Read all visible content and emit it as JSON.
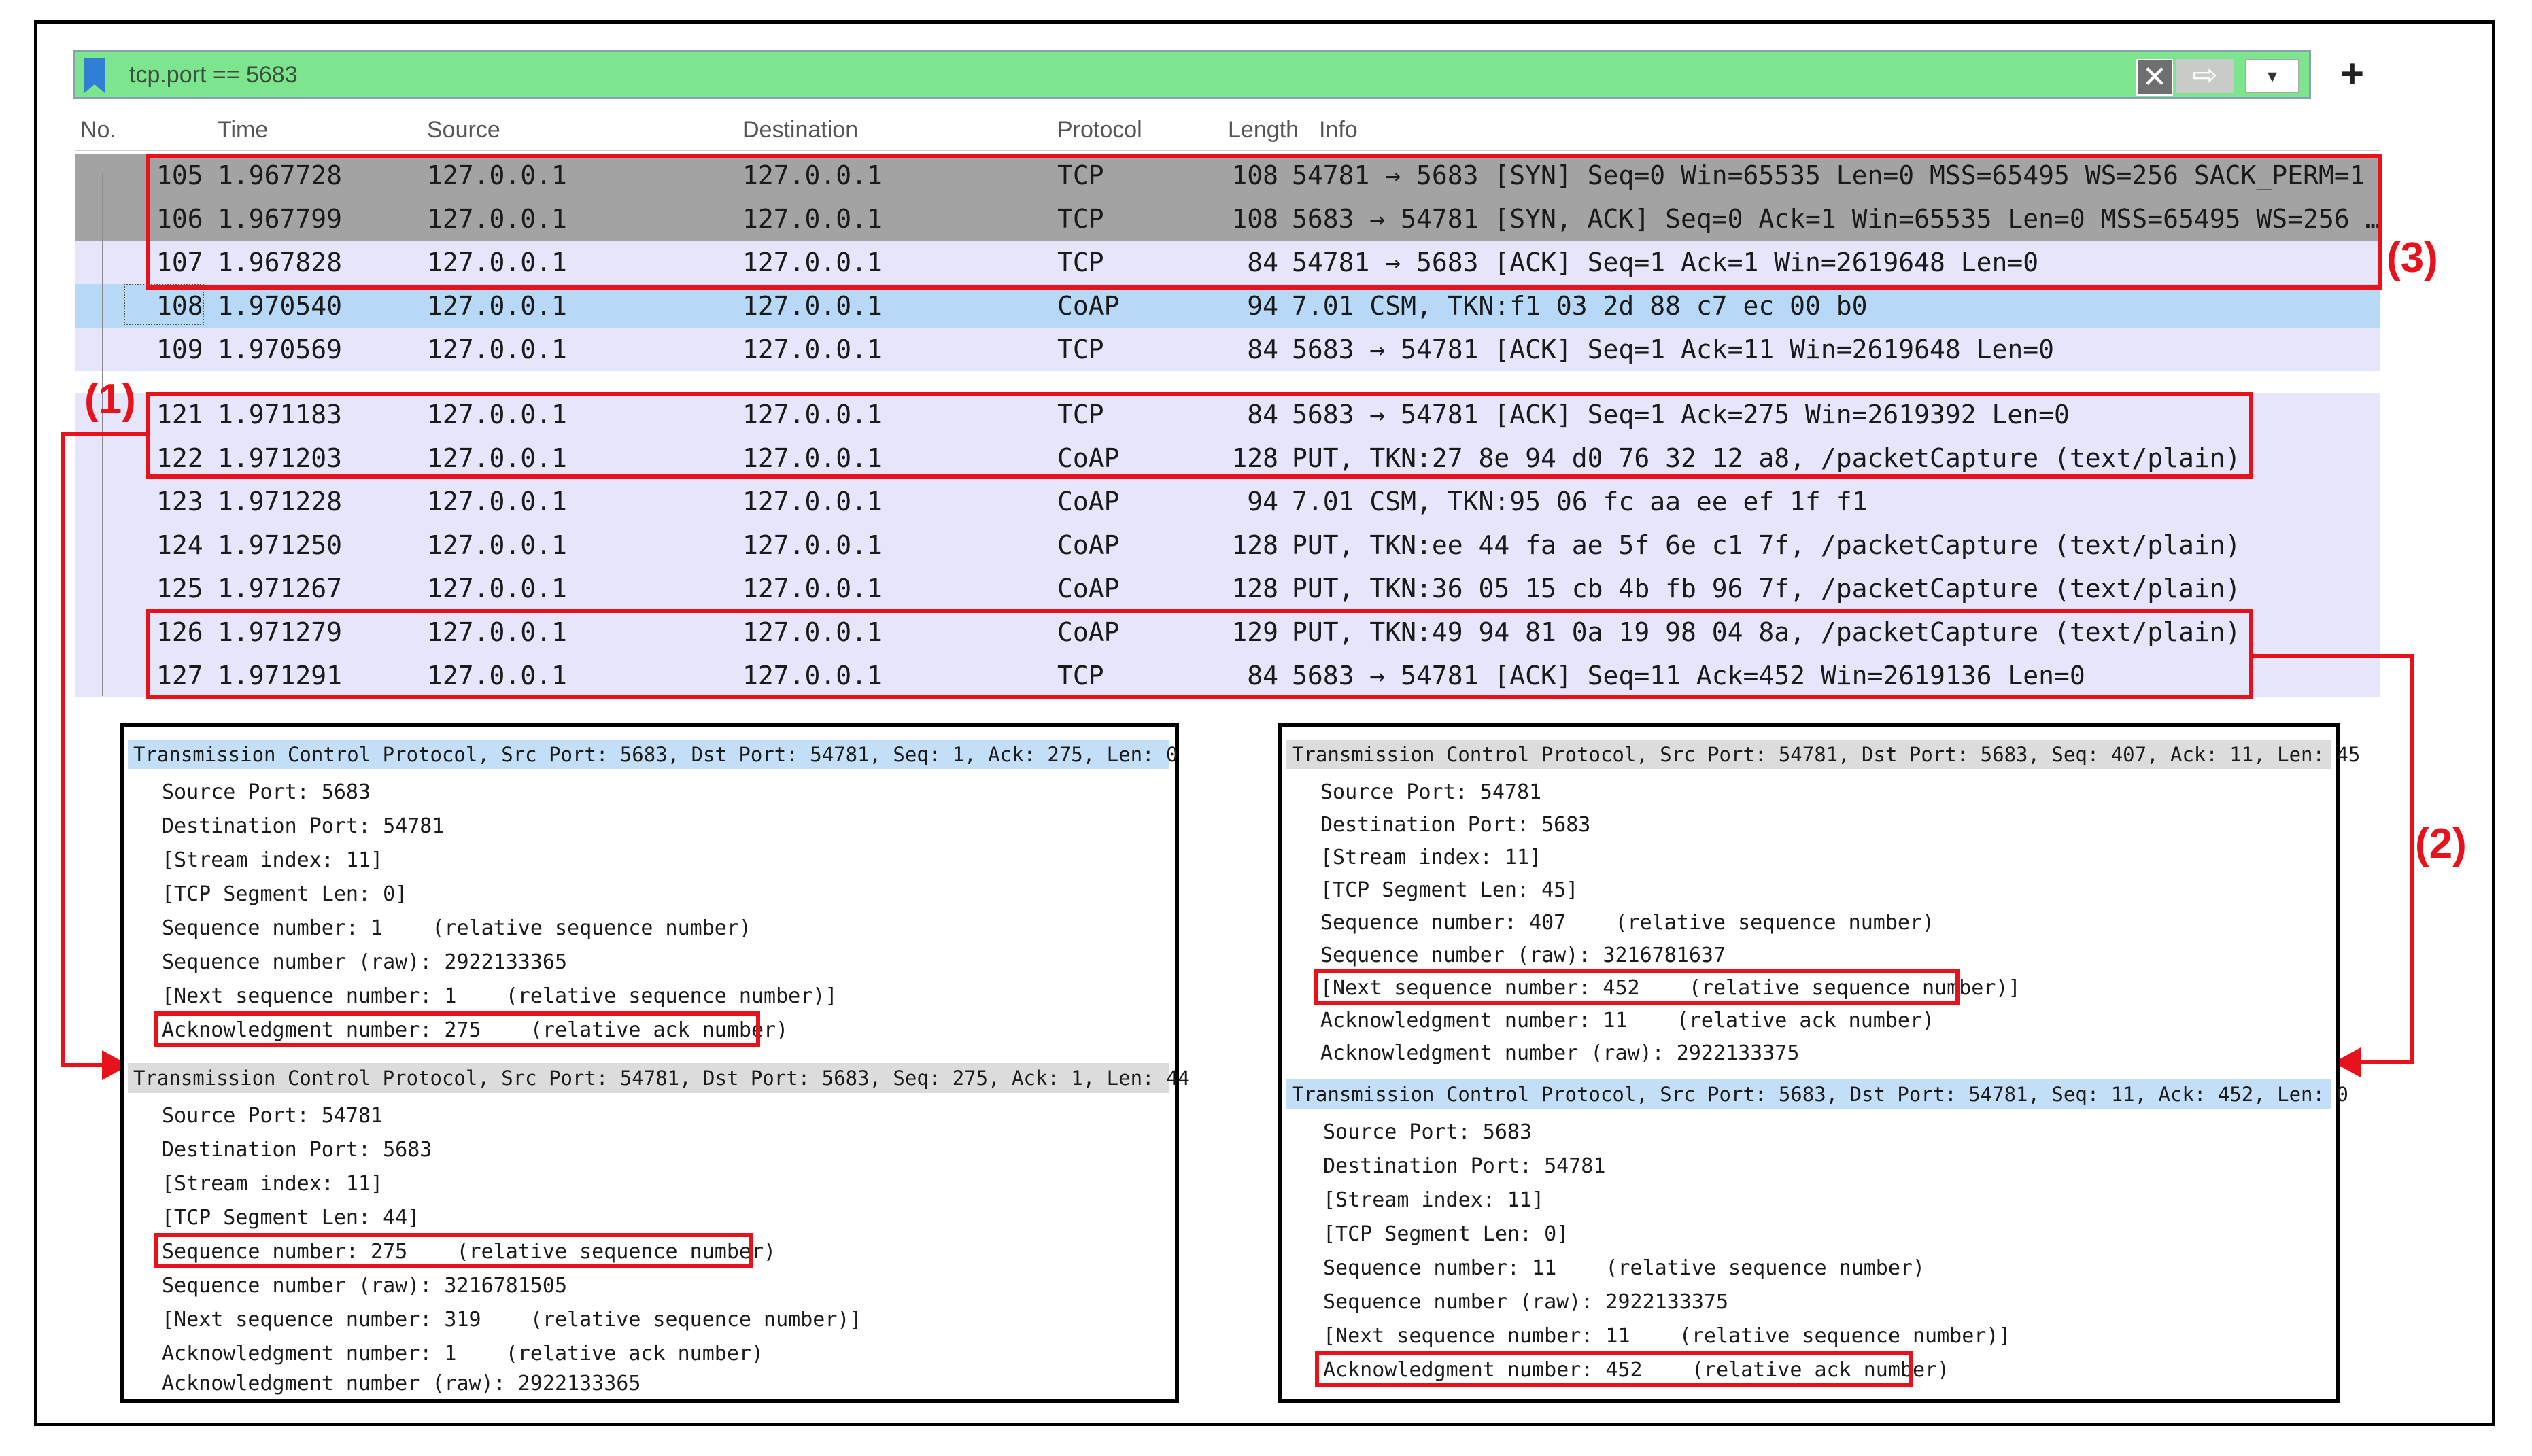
{
  "filter": {
    "value": "tcp.port == 5683"
  },
  "filter_buttons": {
    "clear": "✕",
    "apply": "⇨",
    "dropdown": "▾",
    "add": "+"
  },
  "columns": [
    "No.",
    "Time",
    "Source",
    "Destination",
    "Protocol",
    "Length",
    "Info"
  ],
  "packets": [
    {
      "no": "105",
      "time": "1.967728",
      "src": "127.0.0.1",
      "dst": "127.0.0.1",
      "proto": "TCP",
      "len": "108",
      "info": "54781 → 5683 [SYN] Seq=0 Win=65535 Len=0 MSS=65495 WS=256 SACK_PERM=1"
    },
    {
      "no": "106",
      "time": "1.967799",
      "src": "127.0.0.1",
      "dst": "127.0.0.1",
      "proto": "TCP",
      "len": "108",
      "info": "5683 → 54781 [SYN, ACK] Seq=0 Ack=1 Win=65535 Len=0 MSS=65495 WS=256 …"
    },
    {
      "no": "107",
      "time": "1.967828",
      "src": "127.0.0.1",
      "dst": "127.0.0.1",
      "proto": "TCP",
      "len": "84",
      "info": "54781 → 5683 [ACK] Seq=1 Ack=1 Win=2619648 Len=0"
    },
    {
      "no": "108",
      "time": "1.970540",
      "src": "127.0.0.1",
      "dst": "127.0.0.1",
      "proto": "CoAP",
      "len": "94",
      "info": "7.01 CSM, TKN:f1 03 2d 88 c7 ec 00 b0"
    },
    {
      "no": "109",
      "time": "1.970569",
      "src": "127.0.0.1",
      "dst": "127.0.0.1",
      "proto": "TCP",
      "len": "84",
      "info": "5683 → 54781 [ACK] Seq=1 Ack=11 Win=2619648 Len=0"
    },
    {
      "no": "121",
      "time": "1.971183",
      "src": "127.0.0.1",
      "dst": "127.0.0.1",
      "proto": "TCP",
      "len": "84",
      "info": "5683 → 54781 [ACK] Seq=1 Ack=275 Win=2619392 Len=0"
    },
    {
      "no": "122",
      "time": "1.971203",
      "src": "127.0.0.1",
      "dst": "127.0.0.1",
      "proto": "CoAP",
      "len": "128",
      "info": "PUT, TKN:27 8e 94 d0 76 32 12 a8, /packetCapture (text/plain)"
    },
    {
      "no": "123",
      "time": "1.971228",
      "src": "127.0.0.1",
      "dst": "127.0.0.1",
      "proto": "CoAP",
      "len": "94",
      "info": "7.01 CSM, TKN:95 06 fc aa ee ef 1f f1"
    },
    {
      "no": "124",
      "time": "1.971250",
      "src": "127.0.0.1",
      "dst": "127.0.0.1",
      "proto": "CoAP",
      "len": "128",
      "info": "PUT, TKN:ee 44 fa ae 5f 6e c1 7f, /packetCapture (text/plain)"
    },
    {
      "no": "125",
      "time": "1.971267",
      "src": "127.0.0.1",
      "dst": "127.0.0.1",
      "proto": "CoAP",
      "len": "128",
      "info": "PUT, TKN:36 05 15 cb 4b fb 96 7f, /packetCapture (text/plain)"
    },
    {
      "no": "126",
      "time": "1.971279",
      "src": "127.0.0.1",
      "dst": "127.0.0.1",
      "proto": "CoAP",
      "len": "129",
      "info": "PUT, TKN:49 94 81 0a 19 98 04 8a, /packetCapture (text/plain)"
    },
    {
      "no": "127",
      "time": "1.971291",
      "src": "127.0.0.1",
      "dst": "127.0.0.1",
      "proto": "TCP",
      "len": "84",
      "info": "5683 → 54781 [ACK] Seq=11 Ack=452 Win=2619136 Len=0"
    }
  ],
  "labels": {
    "one": "(1)",
    "two": "(2)",
    "three": "(3)"
  },
  "left_panel": {
    "a_head": "Transmission Control Protocol, Src Port: 5683, Dst Port: 54781, Seq: 1, Ack: 275, Len: 0",
    "a_lines": [
      "Source Port: 5683",
      "Destination Port: 54781",
      "[Stream index: 11]",
      "[TCP Segment Len: 0]",
      "Sequence number: 1    (relative sequence number)",
      "Sequence number (raw): 2922133365",
      "[Next sequence number: 1    (relative sequence number)]",
      "Acknowledgment number: 275    (relative ack number)"
    ],
    "b_head": "Transmission Control Protocol, Src Port: 54781, Dst Port: 5683, Seq: 275, Ack: 1, Len: 44",
    "b_lines": [
      "Source Port: 54781",
      "Destination Port: 5683",
      "[Stream index: 11]",
      "[TCP Segment Len: 44]",
      "Sequence number: 275    (relative sequence number)",
      "Sequence number (raw): 3216781505",
      "[Next sequence number: 319    (relative sequence number)]",
      "Acknowledgment number: 1    (relative ack number)",
      "Acknowledgment number (raw): 2922133365"
    ]
  },
  "right_panel": {
    "a_head": "Transmission Control Protocol, Src Port: 54781, Dst Port: 5683, Seq: 407, Ack: 11, Len: 45",
    "a_lines": [
      "Source Port: 54781",
      "Destination Port: 5683",
      "[Stream index: 11]",
      "[TCP Segment Len: 45]",
      "Sequence number: 407    (relative sequence number)",
      "Sequence number (raw): 3216781637",
      "[Next sequence number: 452    (relative sequence number)]",
      "Acknowledgment number: 11    (relative ack number)",
      "Acknowledgment number (raw): 2922133375"
    ],
    "b_head": "Transmission Control Protocol, Src Port: 5683, Dst Port: 54781, Seq: 11, Ack: 452, Len: 0",
    "b_lines": [
      "Source Port: 5683",
      "Destination Port: 54781",
      "[Stream index: 11]",
      "[TCP Segment Len: 0]",
      "Sequence number: 11    (relative sequence number)",
      "Sequence number (raw): 2922133375",
      "[Next sequence number: 11    (relative sequence number)]",
      "Acknowledgment number: 452    (relative ack number)"
    ]
  },
  "colors": {
    "filter_bg": "#7ee58f",
    "row_dark": "#a3a3a3",
    "row_lavender": "#e5e5fb",
    "row_selected": "#b7d9f7",
    "annotation": "#e8121c"
  }
}
